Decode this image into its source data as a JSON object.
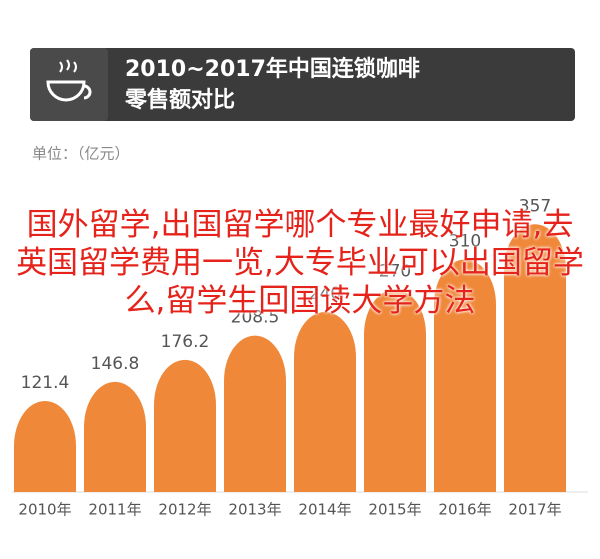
{
  "chart_data": {
    "type": "bar",
    "title": [
      "2010~2017年中国连锁咖啡",
      "零售额对比"
    ],
    "unit_label": "单位：（亿元）",
    "annotation": "国外留学,出国留学哪个专业最好申请,去英国留学费用一览,大专毕业可以出国留学么,留学生回国读大学方法",
    "categories": [
      "2010年",
      "2011年",
      "2012年",
      "2013年",
      "2014年",
      "2015年",
      "2016年",
      "2017年"
    ],
    "values": [
      121.4,
      146.8,
      176.2,
      208.5,
      240,
      270,
      310,
      357
    ],
    "color": "#f0883a"
  }
}
